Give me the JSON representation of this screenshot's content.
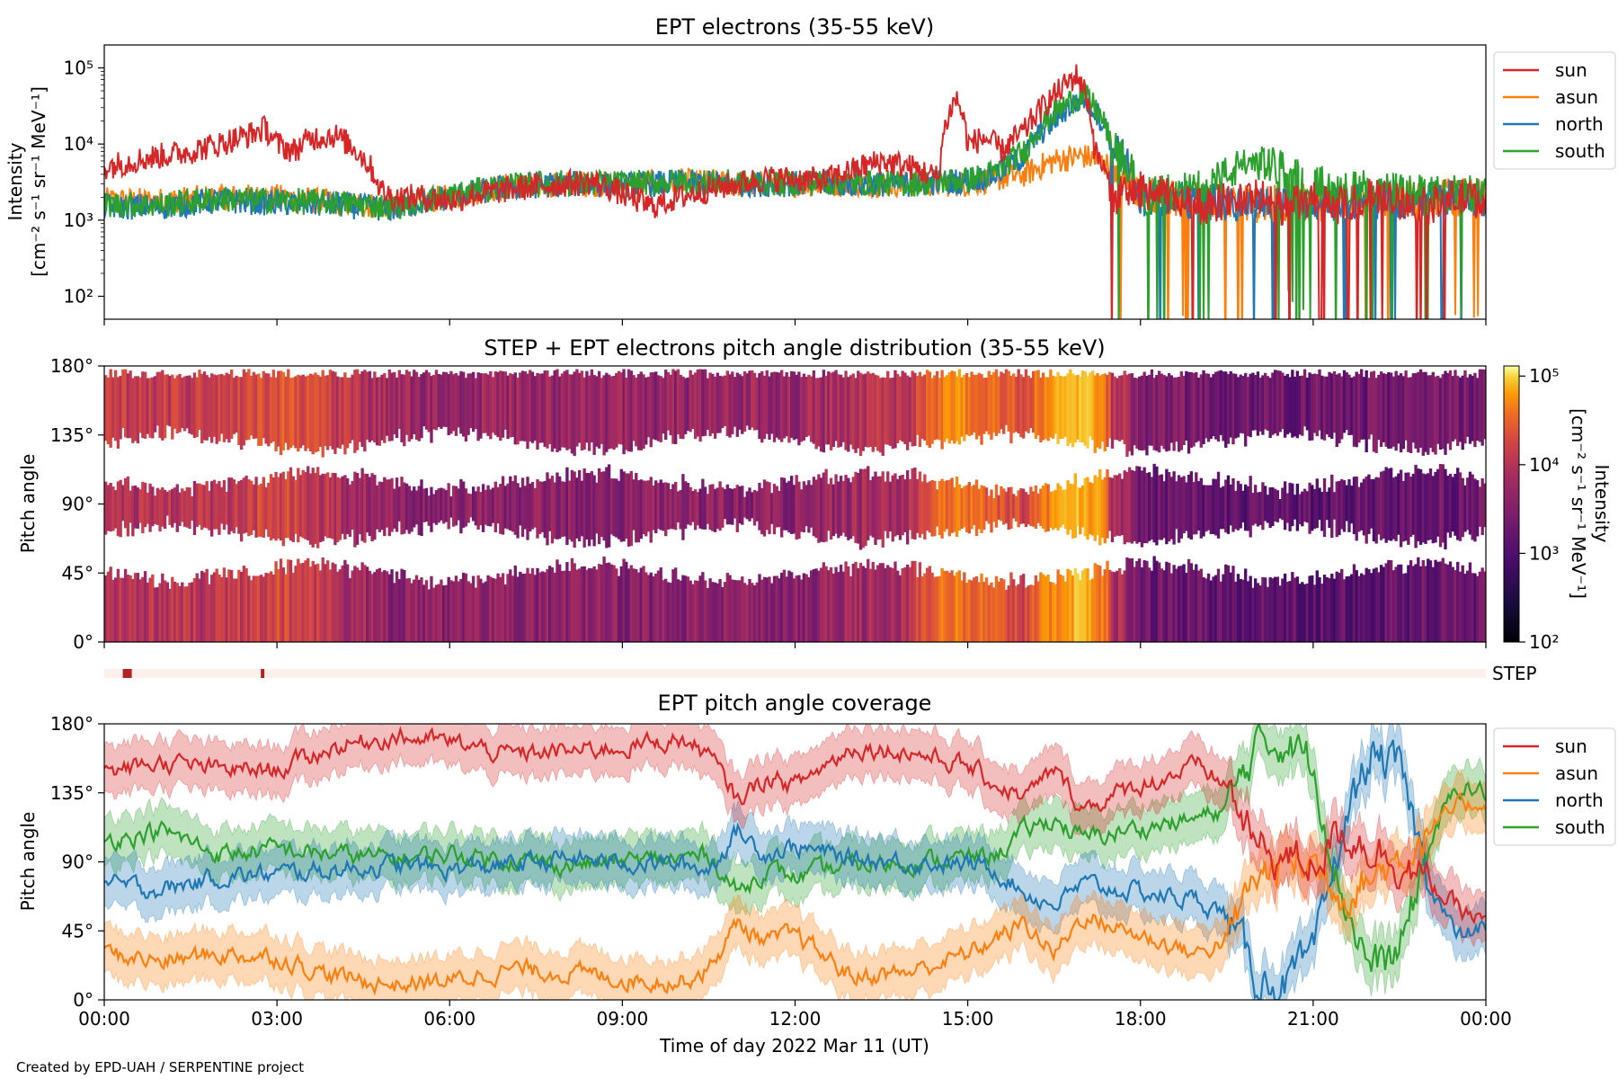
{
  "credit": "Created by EPD-UAH / SERPENTINE project",
  "colors": {
    "sun": "#d62728",
    "asun": "#ff7f0e",
    "north": "#1f77b4",
    "south": "#2ca02c",
    "step_bar": "#b22222",
    "step_bg": "#fdf0ec"
  },
  "chart_data": [
    {
      "type": "line",
      "title": "EPT electrons (35-55 keV)",
      "xlabel": "",
      "ylabel": "Intensity",
      "ylabel_units": "[cm⁻² s⁻¹ sr⁻¹ MeV⁻¹]",
      "yscale": "log",
      "ylim": [
        50,
        200000
      ],
      "yticks": [
        "10²",
        "10³",
        "10⁴",
        "10⁵"
      ],
      "x_unit": "hours of day 2022 Mar 11 (UT)",
      "xlim": [
        0,
        24
      ],
      "legend_placement": "right-outside-top",
      "series": [
        {
          "name": "sun",
          "color": "#d62728",
          "x": [
            0,
            0.5,
            1,
            1.5,
            2,
            2.5,
            2.8,
            3,
            3.3,
            3.6,
            4,
            4.4,
            4.8,
            5,
            5.5,
            6,
            6.5,
            7,
            7.5,
            8,
            8.5,
            9,
            9.5,
            10,
            10.5,
            11,
            11.5,
            12,
            12.5,
            13,
            13.5,
            14,
            14.5,
            14.8,
            15,
            15.3,
            15.6,
            16,
            16.3,
            16.6,
            16.9,
            17.2,
            17.5,
            18,
            18.5,
            19,
            19.5,
            20,
            20.5,
            21,
            21.5,
            22,
            22.5,
            23,
            23.5,
            24
          ],
          "y": [
            5000,
            6000,
            7000,
            8000,
            10000,
            13000,
            16000,
            10000,
            8000,
            12000,
            13000,
            8000,
            2500,
            2000,
            2000,
            1800,
            2200,
            2500,
            2800,
            3000,
            3200,
            2200,
            1500,
            2000,
            2500,
            3000,
            3500,
            3500,
            3300,
            4500,
            6000,
            5000,
            3500,
            40000,
            10000,
            12000,
            8000,
            15000,
            30000,
            50000,
            80000,
            8000,
            2000,
            2500,
            2000,
            1500,
            1800,
            2000,
            1500,
            1800,
            1500,
            2000,
            1800,
            1500,
            2000,
            1800
          ]
        },
        {
          "name": "asun",
          "color": "#ff7f0e",
          "x": [
            0,
            1,
            2,
            3,
            4,
            5,
            6,
            7,
            8,
            9,
            10,
            11,
            12,
            13,
            14,
            15,
            15.5,
            16,
            16.5,
            17,
            17.5,
            18,
            19,
            20,
            21,
            22,
            23,
            24
          ],
          "y": [
            1800,
            1800,
            2000,
            2000,
            1700,
            1500,
            2000,
            2800,
            3000,
            3000,
            3200,
            3000,
            3000,
            3000,
            3000,
            3000,
            3500,
            4000,
            6000,
            7000,
            5000,
            2200,
            1800,
            1600,
            1800,
            1800,
            2000,
            2000
          ]
        },
        {
          "name": "north",
          "color": "#1f77b4",
          "x": [
            0,
            1,
            2,
            3,
            4,
            5,
            6,
            7,
            8,
            9,
            10,
            11,
            12,
            13,
            14,
            15,
            15.5,
            16,
            16.5,
            17,
            17.5,
            18,
            19,
            20,
            21,
            22,
            23,
            24
          ],
          "y": [
            1500,
            1500,
            1800,
            1700,
            1600,
            1400,
            2000,
            2700,
            3000,
            2900,
            3100,
            3000,
            3000,
            3000,
            3000,
            3300,
            4000,
            7000,
            20000,
            40000,
            10000,
            2000,
            1800,
            1500,
            1700,
            1800,
            1900,
            2000
          ]
        },
        {
          "name": "south",
          "color": "#2ca02c",
          "x": [
            0,
            1,
            2,
            3,
            4,
            5,
            6,
            7,
            8,
            9,
            10,
            11,
            12,
            13,
            14,
            15,
            15.5,
            16,
            16.5,
            17,
            17.5,
            18,
            19,
            19.5,
            20,
            21,
            22,
            23,
            24
          ],
          "y": [
            1600,
            1600,
            1900,
            1800,
            1700,
            1500,
            2100,
            2800,
            3100,
            3000,
            3200,
            3100,
            3100,
            3100,
            3000,
            3400,
            4200,
            8000,
            25000,
            45000,
            9000,
            2100,
            2500,
            4000,
            6000,
            3000,
            2500,
            2200,
            2200
          ]
        }
      ]
    },
    {
      "type": "heatmap",
      "title": "STEP + EPT electrons pitch angle distribution (35-55 keV)",
      "xlabel": "",
      "ylabel": "Pitch angle",
      "yticks": [
        "0°",
        "45°",
        "90°",
        "135°",
        "180°"
      ],
      "ylim": [
        0,
        180
      ],
      "xlim": [
        0,
        24
      ],
      "colorbar": {
        "label": "Intensity",
        "units": "[cm⁻² s⁻¹ sr⁻¹ MeV⁻¹]",
        "scale": "log",
        "range": [
          100,
          130000
        ],
        "ticks": [
          "10²",
          "10³",
          "10⁴",
          "10⁵"
        ],
        "colormap": "inferno"
      },
      "time_hours": [
        0,
        2,
        3,
        4,
        5,
        6,
        8,
        10,
        11,
        12,
        13,
        14,
        14.8,
        15.5,
        16,
        16.5,
        17,
        17.5,
        18,
        19,
        20,
        21,
        22,
        23,
        24
      ],
      "intensity_level": [
        3000,
        3500,
        6000,
        3000,
        1500,
        1500,
        1500,
        1400,
        1500,
        1500,
        2000,
        3000,
        15000,
        8000,
        5000,
        20000,
        40000,
        3000,
        1000,
        800,
        700,
        700,
        700,
        800,
        900
      ]
    },
    {
      "type": "table",
      "label": "STEP",
      "coverage_marks_hours": [
        0.4,
        2.75
      ]
    },
    {
      "type": "area",
      "title": "EPT pitch angle coverage",
      "xlabel": "Time of day 2022 Mar 11 (UT)",
      "ylabel": "Pitch angle",
      "yticks": [
        "0°",
        "45°",
        "90°",
        "135°",
        "180°"
      ],
      "ylim": [
        0,
        180
      ],
      "xlim": [
        0,
        24
      ],
      "xticks": [
        "00:00",
        "03:00",
        "06:00",
        "09:00",
        "12:00",
        "15:00",
        "18:00",
        "21:00",
        "00:00"
      ],
      "legend_placement": "right-outside-top",
      "series": [
        {
          "name": "sun",
          "color": "#d62728",
          "x": [
            0,
            1,
            2,
            3,
            4,
            5,
            6,
            7,
            8,
            9,
            10,
            10.5,
            11,
            11.5,
            12,
            13,
            14,
            15,
            15.5,
            16,
            16.5,
            17,
            18,
            19,
            19.5,
            20,
            20.5,
            21,
            21.5,
            22,
            22.5,
            23,
            23.5,
            24
          ],
          "y": [
            148,
            155,
            150,
            150,
            165,
            172,
            168,
            160,
            162,
            165,
            170,
            160,
            130,
            145,
            140,
            165,
            162,
            152,
            140,
            132,
            150,
            125,
            140,
            152,
            140,
            100,
            92,
            90,
            110,
            100,
            90,
            75,
            60,
            50
          ]
        },
        {
          "name": "asun",
          "color": "#ff7f0e",
          "x": [
            0,
            1,
            2,
            3,
            4,
            5,
            6,
            7,
            8,
            9,
            10,
            10.5,
            11,
            11.5,
            12,
            13,
            14,
            15,
            15.5,
            16,
            16.5,
            17,
            18,
            19,
            19.5,
            20,
            20.5,
            21,
            21.5,
            22,
            22.5,
            23,
            23.5,
            24
          ],
          "y": [
            30,
            25,
            30,
            28,
            15,
            10,
            12,
            20,
            18,
            14,
            12,
            20,
            50,
            38,
            42,
            15,
            18,
            30,
            40,
            50,
            30,
            55,
            42,
            30,
            40,
            80,
            88,
            90,
            70,
            80,
            92,
            110,
            125,
            130
          ]
        },
        {
          "name": "north",
          "color": "#1f77b4",
          "x": [
            0,
            1,
            2,
            3,
            4,
            5,
            6,
            7,
            8,
            9,
            10,
            10.5,
            11,
            11.5,
            12,
            13,
            14,
            15,
            15.5,
            16,
            16.5,
            17,
            18,
            19,
            19.5,
            20,
            20.5,
            21,
            21.5,
            22,
            22.5,
            23,
            23.5,
            24
          ],
          "y": [
            75,
            72,
            80,
            82,
            85,
            88,
            85,
            88,
            92,
            90,
            88,
            85,
            110,
            95,
            100,
            92,
            90,
            88,
            85,
            70,
            62,
            75,
            70,
            65,
            55,
            15,
            10,
            25,
            110,
            160,
            150,
            80,
            40,
            48
          ]
        },
        {
          "name": "south",
          "color": "#2ca02c",
          "x": [
            0,
            1,
            2,
            3,
            4,
            5,
            6,
            7,
            8,
            9,
            10,
            10.5,
            11,
            11.5,
            12,
            13,
            14,
            15,
            15.5,
            16,
            16.5,
            17,
            18,
            19,
            19.5,
            20,
            20.5,
            21,
            21.5,
            22,
            22.5,
            23,
            23.5,
            24
          ],
          "y": [
            105,
            110,
            95,
            98,
            95,
            92,
            95,
            92,
            88,
            90,
            92,
            95,
            70,
            85,
            80,
            88,
            90,
            92,
            95,
            110,
            118,
            105,
            112,
            118,
            125,
            165,
            170,
            155,
            70,
            20,
            30,
            100,
            140,
            135
          ]
        }
      ]
    }
  ]
}
